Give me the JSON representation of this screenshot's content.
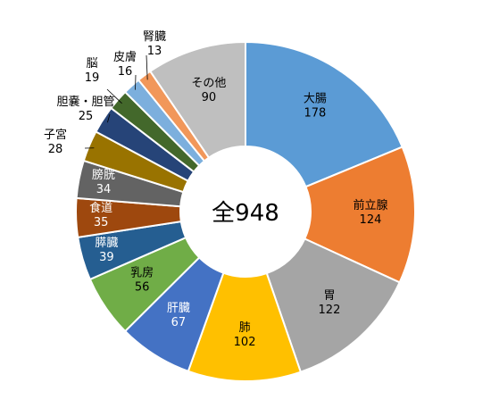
{
  "chart_data": {
    "type": "pie",
    "donut": true,
    "title": "",
    "center_label": "全948",
    "start_angle_deg": 0,
    "direction": "clockwise",
    "slices": [
      {
        "label": "大腸",
        "value": 178,
        "color": "#5B9BD5"
      },
      {
        "label": "前立腺",
        "value": 124,
        "color": "#ED7D31"
      },
      {
        "label": "胃",
        "value": 122,
        "color": "#A5A5A5"
      },
      {
        "label": "肺",
        "value": 102,
        "color": "#FFC000"
      },
      {
        "label": "肝臓",
        "value": 67,
        "color": "#4472C4"
      },
      {
        "label": "乳房",
        "value": 56,
        "color": "#70AD47"
      },
      {
        "label": "膵臓",
        "value": 39,
        "color": "#255E91"
      },
      {
        "label": "食道",
        "value": 35,
        "color": "#9E480E"
      },
      {
        "label": "膀胱",
        "value": 34,
        "color": "#636363"
      },
      {
        "label": "子宮",
        "value": 28,
        "color": "#997300"
      },
      {
        "label": "胆嚢・胆管",
        "value": 25,
        "color": "#264478"
      },
      {
        "label": "脳",
        "value": 19,
        "color": "#43682B"
      },
      {
        "label": "皮膚",
        "value": 16,
        "color": "#7CAFDD"
      },
      {
        "label": "腎臓",
        "value": 13,
        "color": "#F1975A"
      },
      {
        "label": "その他",
        "value": 90,
        "color": "#BFBFBF"
      }
    ]
  }
}
